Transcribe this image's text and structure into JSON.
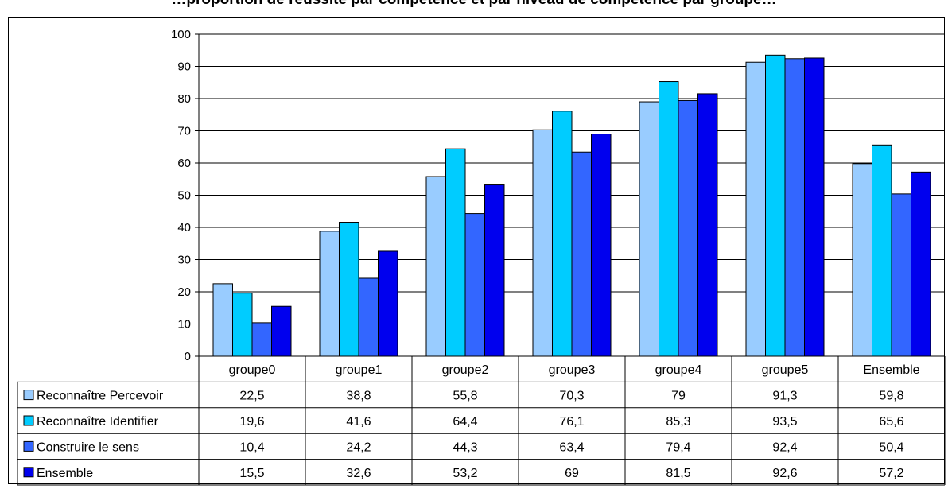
{
  "title": "…proportion de réussite par compétence et par niveau de compétence par groupe…",
  "chart_data": {
    "type": "bar",
    "categories": [
      "groupe0",
      "groupe1",
      "groupe2",
      "groupe3",
      "groupe4",
      "groupe5",
      "Ensemble"
    ],
    "series": [
      {
        "name": "Reconnaître Percevoir",
        "color": "#99ccff",
        "values": [
          22.5,
          38.8,
          55.8,
          70.3,
          79,
          91.3,
          59.8
        ]
      },
      {
        "name": "Reconnaître Identifier",
        "color": "#00ccff",
        "values": [
          19.6,
          41.6,
          64.4,
          76.1,
          85.3,
          93.5,
          65.6
        ]
      },
      {
        "name": "Construire le sens",
        "color": "#3366ff",
        "values": [
          10.4,
          24.2,
          44.3,
          63.4,
          79.4,
          92.4,
          50.4
        ]
      },
      {
        "name": "Ensemble",
        "color": "#0000ee",
        "values": [
          15.5,
          32.6,
          53.2,
          69,
          81.5,
          92.6,
          57.2
        ]
      }
    ],
    "ylim": [
      0,
      100
    ],
    "yticks": [
      0,
      10,
      20,
      30,
      40,
      50,
      60,
      70,
      80,
      90,
      100
    ],
    "grid": true,
    "legend": "data-table",
    "table_display": [
      [
        "22,5",
        "38,8",
        "55,8",
        "70,3",
        "79",
        "91,3",
        "59,8"
      ],
      [
        "19,6",
        "41,6",
        "64,4",
        "76,1",
        "85,3",
        "93,5",
        "65,6"
      ],
      [
        "10,4",
        "24,2",
        "44,3",
        "63,4",
        "79,4",
        "92,4",
        "50,4"
      ],
      [
        "15,5",
        "32,6",
        "53,2",
        "69",
        "81,5",
        "92,6",
        "57,2"
      ]
    ]
  }
}
